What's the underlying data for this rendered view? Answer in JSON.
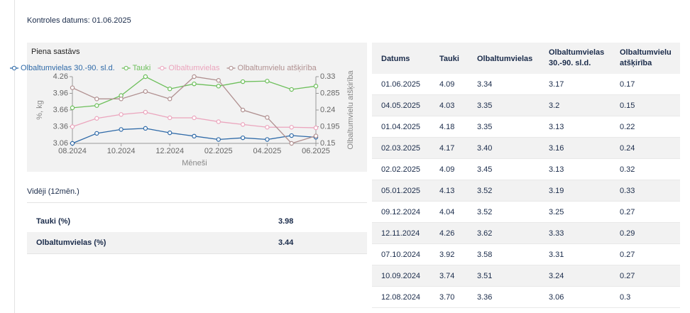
{
  "header": {
    "label": "Kontroles datums:",
    "date": "01.06.2025"
  },
  "chart_data": {
    "type": "line",
    "title": "Piena sastāvs",
    "x_label": "Mēneši",
    "y_label": "%, kg",
    "y2_label": "Olbaltumvielu atšķirība",
    "categories": [
      "08.2024",
      null,
      "10.2024",
      null,
      "12.2024",
      null,
      "02.2025",
      null,
      "04.2025",
      null,
      "06.2025"
    ],
    "ylim": [
      3.06,
      4.26
    ],
    "yticks": [
      3.06,
      3.36,
      3.66,
      3.96,
      4.26
    ],
    "y2lim": [
      0.15,
      0.33
    ],
    "y2ticks": [
      0.15,
      0.195,
      0.24,
      0.285,
      0.33
    ],
    "grid": false,
    "legend": "top",
    "series": [
      {
        "name": "Olbaltumvielas 30.-90. sl.d.",
        "color": "#2f6aa8",
        "values": [
          3.06,
          3.24,
          3.31,
          3.33,
          3.25,
          3.19,
          3.13,
          3.16,
          3.13,
          3.2,
          3.17
        ]
      },
      {
        "name": "Tauki",
        "color": "#6dbf5b",
        "values": [
          3.7,
          3.74,
          3.92,
          4.26,
          4.04,
          4.13,
          4.09,
          4.17,
          4.18,
          4.03,
          4.09
        ]
      },
      {
        "name": "Olbaltumvielas",
        "color": "#eba5bd",
        "values": [
          3.36,
          3.51,
          3.58,
          3.62,
          3.52,
          3.52,
          3.45,
          3.4,
          3.35,
          3.35,
          3.34
        ]
      },
      {
        "name": "Olbaltumvielu atšķirība",
        "color": "#b09090",
        "axis": "y2",
        "values": [
          0.3,
          0.27,
          0.27,
          0.29,
          0.27,
          0.33,
          0.32,
          0.24,
          0.22,
          0.15,
          0.17
        ]
      }
    ]
  },
  "averages": {
    "title": "Vidēji (12mēn.)",
    "rows": [
      [
        "Tauki (%)",
        "3.98"
      ],
      [
        "Olbaltumvielas (%)",
        "3.44"
      ]
    ]
  },
  "table": {
    "header": [
      "Datums",
      "Tauki",
      "Olbaltumvielas",
      "Olbaltumvielas 30.-90. sl.d.",
      "Olbaltumvielu atšķirība"
    ],
    "rows": [
      [
        "01.06.2025",
        "4.09",
        "3.34",
        "3.17",
        "0.17"
      ],
      [
        "04.05.2025",
        "4.03",
        "3.35",
        "3.2",
        "0.15"
      ],
      [
        "01.04.2025",
        "4.18",
        "3.35",
        "3.13",
        "0.22"
      ],
      [
        "02.03.2025",
        "4.17",
        "3.40",
        "3.16",
        "0.24"
      ],
      [
        "02.02.2025",
        "4.09",
        "3.45",
        "3.13",
        "0.32"
      ],
      [
        "05.01.2025",
        "4.13",
        "3.52",
        "3.19",
        "0.33"
      ],
      [
        "09.12.2024",
        "4.04",
        "3.52",
        "3.25",
        "0.27"
      ],
      [
        "12.11.2024",
        "4.26",
        "3.62",
        "3.33",
        "0.29"
      ],
      [
        "07.10.2024",
        "3.92",
        "3.58",
        "3.31",
        "0.27"
      ],
      [
        "10.09.2024",
        "3.74",
        "3.51",
        "3.24",
        "0.27"
      ],
      [
        "12.08.2024",
        "3.70",
        "3.36",
        "3.06",
        "0.3"
      ]
    ]
  }
}
